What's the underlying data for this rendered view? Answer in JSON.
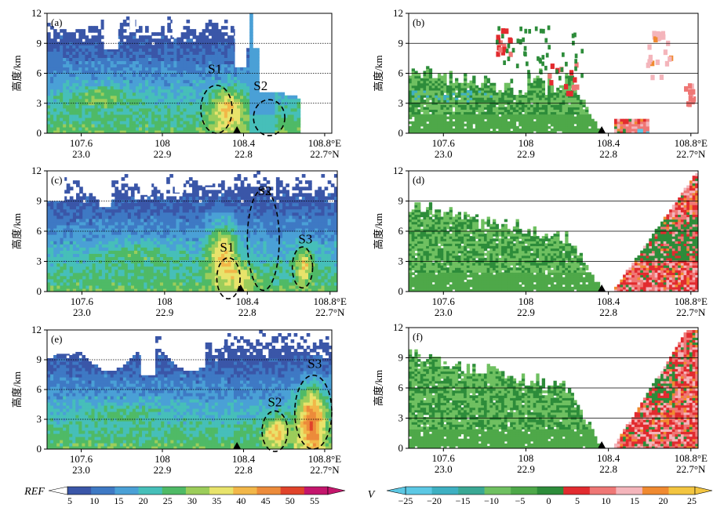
{
  "chart_data": [
    {
      "type": "heatmap",
      "panel": "(a)",
      "variable": "REF",
      "ylabel": "高度/km",
      "ylim": [
        0,
        12
      ],
      "yticks": [
        "0",
        "3",
        "6",
        "9",
        "12"
      ],
      "xticks": [
        {
          "lon": "107.6",
          "lat": "23.0"
        },
        {
          "lon": "108",
          "lat": "22.9"
        },
        {
          "lon": "108.4",
          "lat": "22.8"
        },
        {
          "lon": "108.8°E",
          "lat": "22.7°N"
        }
      ],
      "grid": "dotted horizontal lines at 3, 6, 9 km",
      "annotations": [
        "S1",
        "S2"
      ]
    },
    {
      "type": "heatmap",
      "panel": "(b)",
      "variable": "V",
      "ylabel": "高度/km",
      "ylim": [
        0,
        12
      ],
      "yticks": [
        "0",
        "3",
        "6",
        "9",
        "12"
      ],
      "xticks": [
        {
          "lon": "107.6",
          "lat": "23.0"
        },
        {
          "lon": "108",
          "lat": "22.9"
        },
        {
          "lon": "108.4",
          "lat": "22.8"
        },
        {
          "lon": "108.8°E",
          "lat": "22.7°N"
        }
      ],
      "grid": "solid horizontal lines at 3, 6, 9 km",
      "annotations": []
    },
    {
      "type": "heatmap",
      "panel": "(c)",
      "variable": "REF",
      "ylabel": "高度/km",
      "ylim": [
        0,
        12
      ],
      "yticks": [
        "0",
        "3",
        "6",
        "9",
        "12"
      ],
      "xticks": [
        {
          "lon": "107.6",
          "lat": "23.0"
        },
        {
          "lon": "108",
          "lat": "22.9"
        },
        {
          "lon": "108.4",
          "lat": "22.8"
        },
        {
          "lon": "108.8°E",
          "lat": "22.7°N"
        }
      ],
      "grid": "dotted horizontal lines at 3, 6, 9 km",
      "annotations": [
        "S1",
        "S2",
        "S3"
      ]
    },
    {
      "type": "heatmap",
      "panel": "(d)",
      "variable": "V",
      "ylabel": "高度/km",
      "ylim": [
        0,
        12
      ],
      "yticks": [
        "0",
        "3",
        "6",
        "9",
        "12"
      ],
      "xticks": [
        {
          "lon": "107.6",
          "lat": "23.0"
        },
        {
          "lon": "108",
          "lat": "22.9"
        },
        {
          "lon": "108.4",
          "lat": "22.8"
        },
        {
          "lon": "108.8°E",
          "lat": "22.7°N"
        }
      ],
      "grid": "solid horizontal lines at 3, 6, 9 km",
      "annotations": []
    },
    {
      "type": "heatmap",
      "panel": "(e)",
      "variable": "REF",
      "ylabel": "高度/km",
      "ylim": [
        0,
        12
      ],
      "yticks": [
        "0",
        "3",
        "6",
        "9",
        "12"
      ],
      "xticks": [
        {
          "lon": "107.6",
          "lat": "23.0"
        },
        {
          "lon": "108",
          "lat": "22.9"
        },
        {
          "lon": "108.4",
          "lat": "22.8"
        },
        {
          "lon": "108.8°E",
          "lat": "22.7°N"
        }
      ],
      "grid": "dotted horizontal lines at 3, 6, 9 km",
      "annotations": [
        "S2",
        "S3"
      ]
    },
    {
      "type": "heatmap",
      "panel": "(f)",
      "variable": "V",
      "ylabel": "高度/km",
      "ylim": [
        0,
        12
      ],
      "yticks": [
        "0",
        "3",
        "6",
        "9",
        "12"
      ],
      "xticks": [
        {
          "lon": "107.6",
          "lat": "23.0"
        },
        {
          "lon": "108",
          "lat": "22.9"
        },
        {
          "lon": "108.4",
          "lat": "22.8"
        },
        {
          "lon": "108.8°E",
          "lat": "22.7°N"
        }
      ],
      "grid": "solid horizontal lines at 3, 6, 9 km",
      "annotations": []
    }
  ],
  "colorbars": {
    "ref": {
      "label": "REF",
      "ticks": [
        "5",
        "10",
        "15",
        "20",
        "25",
        "30",
        "35",
        "40",
        "45",
        "50",
        "55"
      ],
      "colors": [
        "#3a56a8",
        "#3e79c4",
        "#4aa0d6",
        "#46bfb9",
        "#4fba66",
        "#9ccd5a",
        "#e8e36b",
        "#f2b749",
        "#ec8b3a",
        "#e0432a",
        "#c4166c"
      ]
    },
    "v": {
      "label": "V",
      "ticks": [
        "−25",
        "−20",
        "−15",
        "−10",
        "−5",
        "0",
        "5",
        "10",
        "15",
        "20",
        "25"
      ],
      "colors": [
        "#5cc8e4",
        "#3eb0c2",
        "#3aa894",
        "#6fc061",
        "#4ea849",
        "#2d8c3a",
        "#e22b2f",
        "#ef7775",
        "#f4b5bb",
        "#f08a30",
        "#f3c540"
      ]
    }
  }
}
